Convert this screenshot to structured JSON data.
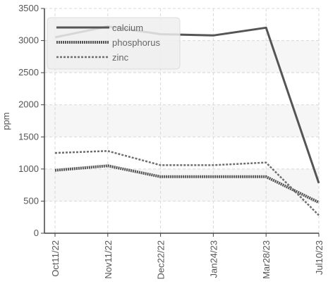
{
  "chart_data": {
    "type": "line",
    "categories": [
      "Oct11/22",
      "Nov11/22",
      "Dec22/22",
      "Jan24/23",
      "Mar28/23",
      "Jul10/23"
    ],
    "ylabel": "ppm",
    "ylim": [
      0,
      3500
    ],
    "yticks": [
      0,
      500,
      1000,
      1500,
      2000,
      2500,
      3000,
      3500
    ],
    "grid": true,
    "legend_position": "top-left",
    "series": [
      {
        "name": "calcium",
        "color": "#555555",
        "style": "solid",
        "values": [
          3050,
          3220,
          3100,
          3080,
          3200,
          780
        ]
      },
      {
        "name": "phosphorus",
        "color": "#555555",
        "style": "dotted",
        "values": [
          980,
          1050,
          880,
          880,
          880,
          480
        ]
      },
      {
        "name": "zinc",
        "color": "#6e6e6e",
        "style": "dashed",
        "values": [
          1250,
          1280,
          1060,
          1060,
          1100,
          280
        ]
      }
    ]
  }
}
